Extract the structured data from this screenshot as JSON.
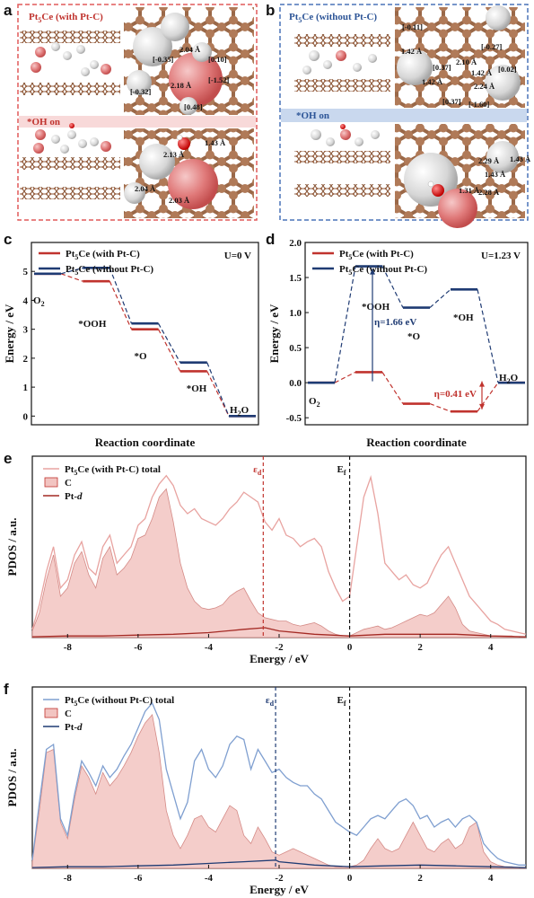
{
  "panel_a": {
    "letter": "a",
    "title_prefix": "Pt",
    "title_sub": "5",
    "title_suffix": "Ce (with Pt-C)",
    "oh_label": "*OH on",
    "labels_top": [
      "2.04 Å",
      "[0.10]",
      "[-0.35]",
      "[-1.52]",
      "[-0.32]",
      "[0.48]",
      "2.18 Å"
    ],
    "labels_bottom": [
      "1.43 Å",
      "2.13 Å",
      "2.04 Å",
      "2.03 Å"
    ],
    "colors": {
      "border": "#e05a5a",
      "band": "#f8d9d9"
    }
  },
  "panel_b": {
    "letter": "b",
    "title_prefix": "Pt",
    "title_sub": "5",
    "title_suffix": "Ce (without Pt-C)",
    "oh_label": "*OH on",
    "labels_top": [
      "[-0.11]",
      "[-0.27]",
      "1.42 Å",
      "2.10 Å",
      "[0.37]",
      "1.42 Å",
      "[0.02]",
      "1.42 Å",
      "2.24 Å",
      "[0.37]",
      "[-1.60]"
    ],
    "labels_bottom": [
      "1.43 Å",
      "2.29 Å",
      "1.43 Å",
      "1.31 Å",
      "2.28 Å"
    ],
    "colors": {
      "border": "#4a74b8",
      "band": "#c9d8ee"
    }
  },
  "panel_c": {
    "letter": "c",
    "condition": "U=0 V",
    "xlabel": "Reaction coordinate",
    "ylabel": "Energy / eV",
    "legend": [
      {
        "prefix": "Pt",
        "sub": "5",
        "suffix": "Ce (with Pt-C)",
        "color": "#c0332e"
      },
      {
        "prefix": "Pt",
        "sub": "5",
        "suffix": "Ce (without Pt-C)",
        "color": "#1f3b73"
      }
    ],
    "species": [
      {
        "pre": "O",
        "sub": "2",
        "post": ""
      },
      {
        "pre": "*OOH",
        "sub": "",
        "post": ""
      },
      {
        "pre": "*O",
        "sub": "",
        "post": ""
      },
      {
        "pre": "*OH",
        "sub": "",
        "post": ""
      },
      {
        "pre": "H",
        "sub": "2",
        "post": "O"
      }
    ]
  },
  "panel_d": {
    "letter": "d",
    "condition": "U=1.23 V",
    "xlabel": "Reaction coordinate",
    "ylabel": "Energy / eV",
    "legend": [
      {
        "prefix": "Pt",
        "sub": "5",
        "suffix": "Ce (with Pt-C)",
        "color": "#c0332e"
      },
      {
        "prefix": "Pt",
        "sub": "5",
        "suffix": "Ce (without Pt-C)",
        "color": "#1f3b73"
      }
    ],
    "species": [
      {
        "pre": "O",
        "sub": "2",
        "post": ""
      },
      {
        "pre": "*OOH",
        "sub": "",
        "post": ""
      },
      {
        "pre": "*O",
        "sub": "",
        "post": ""
      },
      {
        "pre": "*OH",
        "sub": "",
        "post": ""
      },
      {
        "pre": "H",
        "sub": "2",
        "post": "O"
      }
    ],
    "eta_blue": "η=1.66 eV",
    "eta_red": "η=0.41 eV"
  },
  "panel_e": {
    "letter": "e",
    "xlabel": "Energy / eV",
    "ylabel": "PDOS / a.u.",
    "legend_total": {
      "prefix": "Pt",
      "sub": "5",
      "suffix": "Ce (with Pt-C) total"
    },
    "legend_c": "C",
    "legend_ptd_prefix": "Pt-",
    "legend_ptd_italic": "d",
    "eps_label": "ε",
    "eps_sub": "d",
    "ef_label": "E",
    "ef_sub": "f",
    "colors": {
      "total": "#e8a3a0",
      "fill": "#f2c4c1",
      "ptd": "#a42a24",
      "eps": "#c0332e"
    }
  },
  "panel_f": {
    "letter": "f",
    "xlabel": "Energy / eV",
    "ylabel": "PDOS / a.u.",
    "legend_total": {
      "prefix": "Pt",
      "sub": "5",
      "suffix": "Ce (without Pt-C) total"
    },
    "legend_c": "C",
    "legend_ptd_prefix": "Pt-",
    "legend_ptd_italic": "d",
    "eps_label": "ε",
    "eps_sub": "d",
    "ef_label": "E",
    "ef_sub": "f",
    "colors": {
      "total": "#7f9fd0",
      "fill": "#f2c4c1",
      "ptd": "#1f3b73",
      "eps": "#1f3b73"
    }
  },
  "chart_data": [
    {
      "id": "c",
      "type": "line",
      "xlabel": "Reaction coordinate",
      "ylabel": "Energy / eV",
      "ylim": [
        -0.3,
        6
      ],
      "yticks": [
        0,
        1,
        2,
        3,
        4,
        5
      ],
      "categories": [
        "O2",
        "*OOH",
        "*O",
        "*OH",
        "H2O"
      ],
      "series": [
        {
          "name": "Pt5Ce (with Pt-C)",
          "values": [
            4.92,
            4.66,
            3.0,
            1.55,
            0
          ]
        },
        {
          "name": "Pt5Ce (without Pt-C)",
          "values": [
            4.92,
            5.12,
            3.2,
            1.85,
            0
          ]
        }
      ]
    },
    {
      "id": "d",
      "type": "line",
      "xlabel": "Reaction coordinate",
      "ylabel": "Energy / eV",
      "ylim": [
        -0.6,
        2.0
      ],
      "yticks": [
        -0.5,
        0.0,
        0.5,
        1.0,
        1.5,
        2.0
      ],
      "categories": [
        "O2",
        "*OOH",
        "*O",
        "*OH",
        "H2O"
      ],
      "series": [
        {
          "name": "Pt5Ce (with Pt-C)",
          "values": [
            0,
            0.15,
            -0.3,
            -0.41,
            0
          ]
        },
        {
          "name": "Pt5Ce (without Pt-C)",
          "values": [
            0,
            1.66,
            1.07,
            1.33,
            0
          ]
        }
      ]
    },
    {
      "id": "e",
      "type": "area",
      "xlabel": "Energy / eV",
      "ylabel": "PDOS / a.u.",
      "xlim": [
        -9,
        5
      ],
      "xticks": [
        -8,
        -6,
        -4,
        -2,
        0,
        2,
        4
      ],
      "eps_d": -2.45,
      "ef": 0,
      "series": [
        {
          "name": "Pt5Ce (with Pt-C) total",
          "x": [
            -9,
            -8.8,
            -8.6,
            -8.4,
            -8.2,
            -8,
            -7.8,
            -7.6,
            -7.4,
            -7.2,
            -7,
            -6.8,
            -6.6,
            -6.4,
            -6.2,
            -6,
            -5.8,
            -5.6,
            -5.4,
            -5.2,
            -5,
            -4.8,
            -4.6,
            -4.4,
            -4.2,
            -4,
            -3.8,
            -3.6,
            -3.4,
            -3.2,
            -3,
            -2.8,
            -2.6,
            -2.4,
            -2.2,
            -2,
            -1.8,
            -1.6,
            -1.4,
            -1.2,
            -1,
            -0.8,
            -0.6,
            -0.4,
            -0.2,
            0,
            0.2,
            0.4,
            0.6,
            0.8,
            1,
            1.2,
            1.4,
            1.6,
            1.8,
            2,
            2.2,
            2.4,
            2.6,
            2.8,
            3,
            3.2,
            3.4,
            3.6,
            3.8,
            4,
            4.2,
            4.4,
            4.6,
            4.8,
            5
          ],
          "values": [
            0.05,
            0.2,
            0.4,
            0.55,
            0.3,
            0.35,
            0.5,
            0.58,
            0.42,
            0.38,
            0.55,
            0.62,
            0.45,
            0.5,
            0.55,
            0.68,
            0.72,
            0.85,
            0.93,
            0.98,
            0.92,
            0.8,
            0.75,
            0.78,
            0.72,
            0.7,
            0.68,
            0.72,
            0.78,
            0.82,
            0.88,
            0.85,
            0.82,
            0.7,
            0.65,
            0.72,
            0.62,
            0.6,
            0.55,
            0.58,
            0.6,
            0.55,
            0.4,
            0.3,
            0.22,
            0.25,
            0.55,
            0.85,
            0.97,
            0.75,
            0.45,
            0.4,
            0.35,
            0.38,
            0.32,
            0.3,
            0.33,
            0.42,
            0.5,
            0.55,
            0.45,
            0.35,
            0.25,
            0.2,
            0.15,
            0.1,
            0.08,
            0.05,
            0.04,
            0.03,
            0.02
          ]
        },
        {
          "name": "C",
          "x": [
            -9,
            -8.8,
            -8.6,
            -8.4,
            -8.2,
            -8,
            -7.8,
            -7.6,
            -7.4,
            -7.2,
            -7,
            -6.8,
            -6.6,
            -6.4,
            -6.2,
            -6,
            -5.8,
            -5.6,
            -5.4,
            -5.2,
            -5,
            -4.8,
            -4.6,
            -4.4,
            -4.2,
            -4,
            -3.8,
            -3.6,
            -3.4,
            -3.2,
            -3,
            -2.8,
            -2.6,
            -2.4,
            -2.2,
            -2,
            -1.8,
            -1.6,
            -1.4,
            -1.2,
            -1,
            -0.8,
            -0.6,
            -0.4,
            -0.2,
            0,
            0.2,
            0.4,
            0.6,
            0.8,
            1,
            1.2,
            1.4,
            1.6,
            1.8,
            2,
            2.2,
            2.4,
            2.6,
            2.8,
            3,
            3.2,
            3.4,
            3.6,
            3.8,
            4,
            4.2,
            4.4,
            4.6,
            4.8,
            5
          ],
          "values": [
            0.04,
            0.15,
            0.35,
            0.5,
            0.25,
            0.3,
            0.45,
            0.52,
            0.38,
            0.3,
            0.48,
            0.55,
            0.38,
            0.42,
            0.48,
            0.6,
            0.62,
            0.72,
            0.85,
            0.9,
            0.7,
            0.45,
            0.3,
            0.22,
            0.18,
            0.17,
            0.18,
            0.2,
            0.25,
            0.28,
            0.3,
            0.22,
            0.15,
            0.12,
            0.11,
            0.1,
            0.1,
            0.08,
            0.07,
            0.08,
            0.09,
            0.07,
            0.04,
            0.02,
            0.01,
            0.01,
            0.03,
            0.05,
            0.06,
            0.07,
            0.05,
            0.06,
            0.08,
            0.1,
            0.12,
            0.14,
            0.13,
            0.15,
            0.2,
            0.25,
            0.18,
            0.08,
            0.04,
            0.03,
            0.02,
            0.01,
            0.01,
            0.01,
            0.01,
            0,
            0
          ]
        },
        {
          "name": "Pt-d",
          "x": [
            -9,
            -8,
            -7,
            -6,
            -5,
            -4,
            -3,
            -2.4,
            -2,
            -1,
            0,
            1,
            2,
            3,
            4,
            5
          ],
          "values": [
            0.005,
            0.01,
            0.01,
            0.015,
            0.02,
            0.03,
            0.05,
            0.06,
            0.04,
            0.02,
            0.01,
            0.02,
            0.02,
            0.02,
            0.01,
            0.005
          ]
        }
      ]
    },
    {
      "id": "f",
      "type": "area",
      "xlabel": "Energy / eV",
      "ylabel": "PDOS / a.u.",
      "xlim": [
        -9,
        5
      ],
      "xticks": [
        -8,
        -6,
        -4,
        -2,
        0,
        2,
        4
      ],
      "eps_d": -2.1,
      "ef": 0,
      "series": [
        {
          "name": "Pt5Ce (without Pt-C) total",
          "x": [
            -9,
            -8.8,
            -8.6,
            -8.4,
            -8.2,
            -8,
            -7.8,
            -7.6,
            -7.4,
            -7.2,
            -7,
            -6.8,
            -6.6,
            -6.4,
            -6.2,
            -6,
            -5.8,
            -5.6,
            -5.4,
            -5.2,
            -5,
            -4.8,
            -4.6,
            -4.4,
            -4.2,
            -4,
            -3.8,
            -3.6,
            -3.4,
            -3.2,
            -3,
            -2.8,
            -2.6,
            -2.4,
            -2.2,
            -2,
            -1.8,
            -1.6,
            -1.4,
            -1.2,
            -1,
            -0.8,
            -0.6,
            -0.4,
            -0.2,
            0,
            0.2,
            0.4,
            0.6,
            0.8,
            1,
            1.2,
            1.4,
            1.6,
            1.8,
            2,
            2.2,
            2.4,
            2.6,
            2.8,
            3,
            3.2,
            3.4,
            3.6,
            3.8,
            4,
            4.2,
            4.4,
            4.6,
            4.8,
            5
          ],
          "values": [
            0.05,
            0.4,
            0.72,
            0.75,
            0.3,
            0.2,
            0.45,
            0.65,
            0.58,
            0.5,
            0.62,
            0.55,
            0.6,
            0.68,
            0.75,
            0.85,
            0.95,
            1.0,
            0.9,
            0.6,
            0.45,
            0.3,
            0.4,
            0.65,
            0.72,
            0.6,
            0.55,
            0.62,
            0.75,
            0.8,
            0.78,
            0.6,
            0.72,
            0.65,
            0.58,
            0.6,
            0.55,
            0.52,
            0.5,
            0.5,
            0.45,
            0.42,
            0.35,
            0.28,
            0.25,
            0.22,
            0.2,
            0.25,
            0.3,
            0.32,
            0.3,
            0.35,
            0.4,
            0.42,
            0.38,
            0.3,
            0.32,
            0.25,
            0.28,
            0.3,
            0.25,
            0.3,
            0.32,
            0.28,
            0.15,
            0.1,
            0.06,
            0.04,
            0.03,
            0.02,
            0.02
          ]
        },
        {
          "name": "C",
          "x": [
            -9,
            -8.8,
            -8.6,
            -8.4,
            -8.2,
            -8,
            -7.8,
            -7.6,
            -7.4,
            -7.2,
            -7,
            -6.8,
            -6.6,
            -6.4,
            -6.2,
            -6,
            -5.8,
            -5.6,
            -5.4,
            -5.2,
            -5,
            -4.8,
            -4.6,
            -4.4,
            -4.2,
            -4,
            -3.8,
            -3.6,
            -3.4,
            -3.2,
            -3,
            -2.8,
            -2.6,
            -2.4,
            -2.2,
            -2,
            -1.8,
            -1.6,
            -1.4,
            -1.2,
            -1,
            -0.8,
            -0.6,
            -0.4,
            -0.2,
            0,
            0.2,
            0.4,
            0.6,
            0.8,
            1,
            1.2,
            1.4,
            1.6,
            1.8,
            2,
            2.2,
            2.4,
            2.6,
            2.8,
            3,
            3.2,
            3.4,
            3.6,
            3.8,
            4,
            4.2,
            4.4,
            4.6,
            4.8,
            5
          ],
          "values": [
            0.04,
            0.35,
            0.7,
            0.72,
            0.28,
            0.18,
            0.42,
            0.62,
            0.55,
            0.45,
            0.58,
            0.5,
            0.55,
            0.62,
            0.7,
            0.8,
            0.88,
            0.93,
            0.7,
            0.35,
            0.2,
            0.12,
            0.2,
            0.3,
            0.32,
            0.25,
            0.22,
            0.3,
            0.38,
            0.35,
            0.2,
            0.15,
            0.25,
            0.18,
            0.1,
            0.08,
            0.1,
            0.12,
            0.1,
            0.08,
            0.06,
            0.04,
            0.02,
            0.01,
            0.01,
            0.01,
            0.02,
            0.05,
            0.12,
            0.18,
            0.12,
            0.1,
            0.12,
            0.2,
            0.28,
            0.2,
            0.12,
            0.1,
            0.15,
            0.18,
            0.12,
            0.15,
            0.25,
            0.28,
            0.1,
            0.04,
            0.02,
            0.01,
            0.01,
            0,
            0
          ]
        },
        {
          "name": "Pt-d",
          "x": [
            -9,
            -8,
            -7,
            -6,
            -5,
            -4,
            -3,
            -2.1,
            -2,
            -1,
            0,
            1,
            2,
            3,
            4,
            5
          ],
          "values": [
            0.005,
            0.01,
            0.01,
            0.015,
            0.02,
            0.03,
            0.04,
            0.05,
            0.04,
            0.02,
            0.01,
            0.015,
            0.02,
            0.015,
            0.01,
            0.005
          ]
        }
      ]
    }
  ]
}
